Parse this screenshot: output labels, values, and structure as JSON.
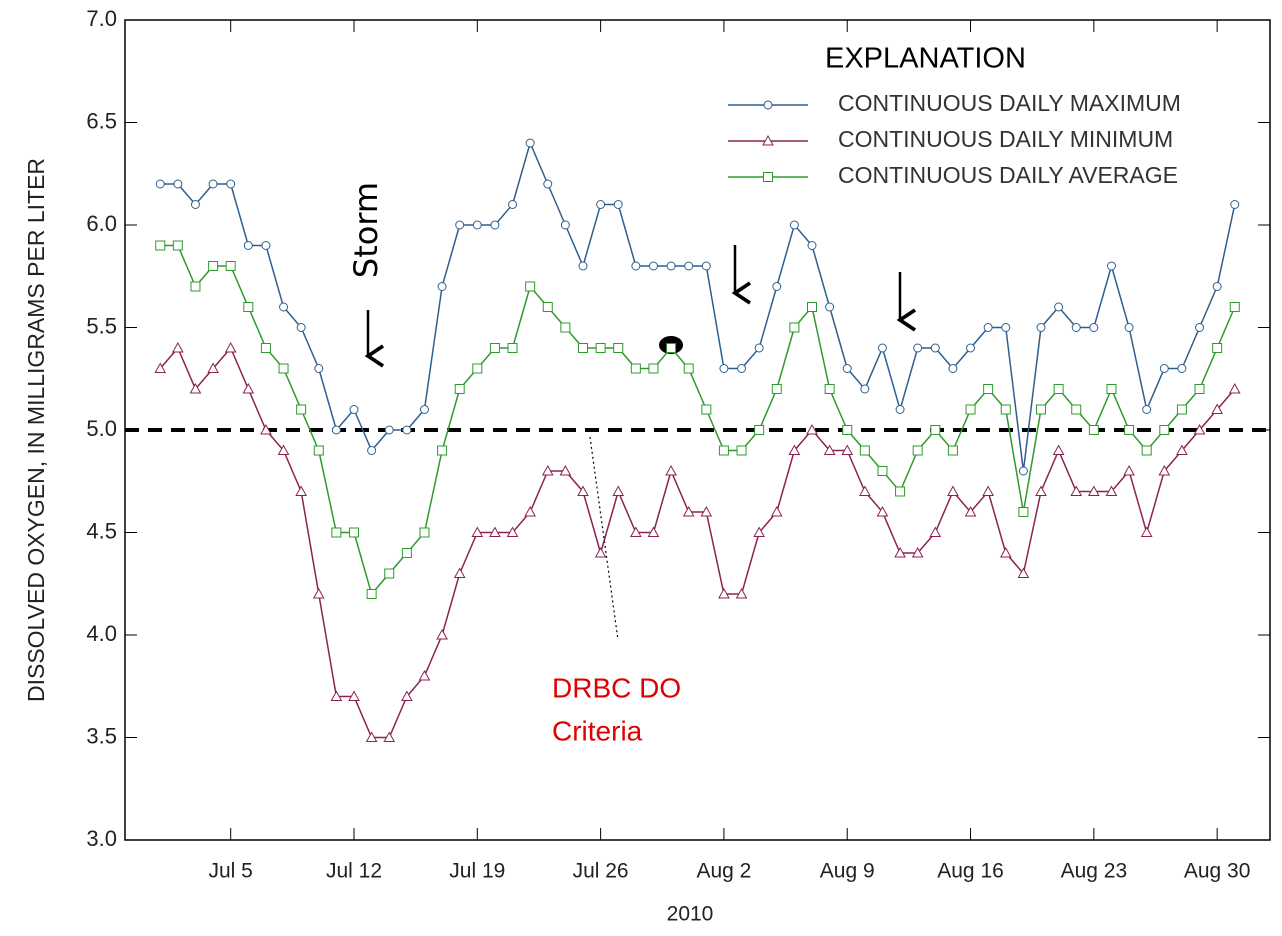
{
  "chart_data": {
    "type": "line",
    "y_label": "DISSOLVED OXYGEN, IN MILLIGRAMS PER LITER",
    "x_label": "2010",
    "legend_title": "EXPLANATION",
    "legend": "upper right",
    "x": [
      "2010-07-01",
      "2010-07-02",
      "2010-07-03",
      "2010-07-04",
      "2010-07-05",
      "2010-07-06",
      "2010-07-07",
      "2010-07-08",
      "2010-07-09",
      "2010-07-10",
      "2010-07-11",
      "2010-07-12",
      "2010-07-13",
      "2010-07-14",
      "2010-07-15",
      "2010-07-16",
      "2010-07-17",
      "2010-07-18",
      "2010-07-19",
      "2010-07-20",
      "2010-07-21",
      "2010-07-22",
      "2010-07-23",
      "2010-07-24",
      "2010-07-25",
      "2010-07-26",
      "2010-07-27",
      "2010-07-28",
      "2010-07-29",
      "2010-07-30",
      "2010-07-31",
      "2010-08-01",
      "2010-08-02",
      "2010-08-03",
      "2010-08-04",
      "2010-08-05",
      "2010-08-06",
      "2010-08-07",
      "2010-08-08",
      "2010-08-09",
      "2010-08-10",
      "2010-08-11",
      "2010-08-12",
      "2010-08-13",
      "2010-08-14",
      "2010-08-15",
      "2010-08-16",
      "2010-08-17",
      "2010-08-18",
      "2010-08-19",
      "2010-08-20",
      "2010-08-21",
      "2010-08-22",
      "2010-08-23",
      "2010-08-24",
      "2010-08-25",
      "2010-08-26",
      "2010-08-27",
      "2010-08-28",
      "2010-08-29",
      "2010-08-30",
      "2010-08-31"
    ],
    "series": [
      {
        "name": "CONTINUOUS DAILY MAXIMUM",
        "color": "#2f5f8f",
        "marker": "circle",
        "values": [
          6.2,
          6.2,
          6.1,
          6.2,
          6.2,
          5.9,
          5.9,
          5.6,
          5.5,
          5.3,
          5.0,
          5.1,
          4.9,
          5.0,
          5.0,
          5.1,
          5.7,
          6.0,
          6.0,
          6.0,
          6.1,
          6.4,
          6.2,
          6.0,
          5.8,
          6.1,
          6.1,
          5.8,
          5.8,
          5.8,
          5.8,
          5.8,
          5.3,
          5.3,
          5.4,
          5.7,
          6.0,
          5.9,
          5.6,
          5.3,
          5.2,
          5.4,
          5.1,
          5.4,
          5.4,
          5.3,
          5.4,
          5.5,
          5.5,
          4.8,
          5.5,
          5.6,
          5.5,
          5.5,
          5.8,
          5.5,
          5.1,
          5.3,
          5.3,
          5.5,
          5.7,
          6.1
        ]
      },
      {
        "name": "CONTINUOUS DAILY MINIMUM",
        "color": "#8b2252",
        "marker": "triangle",
        "values": [
          5.3,
          5.4,
          5.2,
          5.3,
          5.4,
          5.2,
          5.0,
          4.9,
          4.7,
          4.2,
          3.7,
          3.7,
          3.5,
          3.5,
          3.7,
          3.8,
          4.0,
          4.3,
          4.5,
          4.5,
          4.5,
          4.6,
          4.8,
          4.8,
          4.7,
          4.4,
          4.7,
          4.5,
          4.5,
          4.8,
          4.6,
          4.6,
          4.2,
          4.2,
          4.5,
          4.6,
          4.9,
          5.0,
          4.9,
          4.9,
          4.7,
          4.6,
          4.4,
          4.4,
          4.5,
          4.7,
          4.6,
          4.7,
          4.4,
          4.3,
          4.7,
          4.9,
          4.7,
          4.7,
          4.7,
          4.8,
          4.5,
          4.8,
          4.9,
          5.0,
          5.1,
          5.2
        ]
      },
      {
        "name": "CONTINUOUS DAILY AVERAGE",
        "color": "#2e9a2e",
        "marker": "square",
        "values": [
          5.9,
          5.9,
          5.7,
          5.8,
          5.8,
          5.6,
          5.4,
          5.3,
          5.1,
          4.9,
          4.5,
          4.5,
          4.2,
          4.3,
          4.4,
          4.5,
          4.9,
          5.2,
          5.3,
          5.4,
          5.4,
          5.7,
          5.6,
          5.5,
          5.4,
          5.4,
          5.4,
          5.3,
          5.3,
          5.4,
          5.3,
          5.1,
          4.9,
          4.9,
          5.0,
          5.2,
          5.5,
          5.6,
          5.2,
          5.0,
          4.9,
          4.8,
          4.7,
          4.9,
          5.0,
          4.9,
          5.1,
          5.2,
          5.1,
          4.6,
          5.1,
          5.2,
          5.1,
          5.0,
          5.2,
          5.0,
          4.9,
          5.0,
          5.1,
          5.2,
          5.4,
          5.6
        ]
      }
    ],
    "xlim": [
      "2010-06-29",
      "2010-09-02"
    ],
    "xticks": [
      {
        "value": "2010-07-05",
        "label": "Jul 5"
      },
      {
        "value": "2010-07-12",
        "label": "Jul 12"
      },
      {
        "value": "2010-07-19",
        "label": "Jul 19"
      },
      {
        "value": "2010-07-26",
        "label": "Jul 26"
      },
      {
        "value": "2010-08-02",
        "label": "Aug 2"
      },
      {
        "value": "2010-08-09",
        "label": "Aug 9"
      },
      {
        "value": "2010-08-16",
        "label": "Aug 16"
      },
      {
        "value": "2010-08-23",
        "label": "Aug 23"
      },
      {
        "value": "2010-08-30",
        "label": "Aug 30"
      }
    ],
    "ylim": [
      3,
      7
    ],
    "yticks": [
      {
        "value": 3,
        "label": "3.0"
      },
      {
        "value": 3.5,
        "label": "3.5"
      },
      {
        "value": 4,
        "label": "4.0"
      },
      {
        "value": 4.5,
        "label": "4.5"
      },
      {
        "value": 5,
        "label": "5.0"
      },
      {
        "value": 5.5,
        "label": "5.5"
      },
      {
        "value": 6,
        "label": "6.0"
      },
      {
        "value": 6.5,
        "label": "6.5"
      },
      {
        "value": 7,
        "label": "7.0"
      }
    ],
    "reference_line": 5,
    "annotations": {
      "storm": "Storm",
      "criteria": [
        "DRBC DO",
        "Criteria"
      ]
    }
  }
}
